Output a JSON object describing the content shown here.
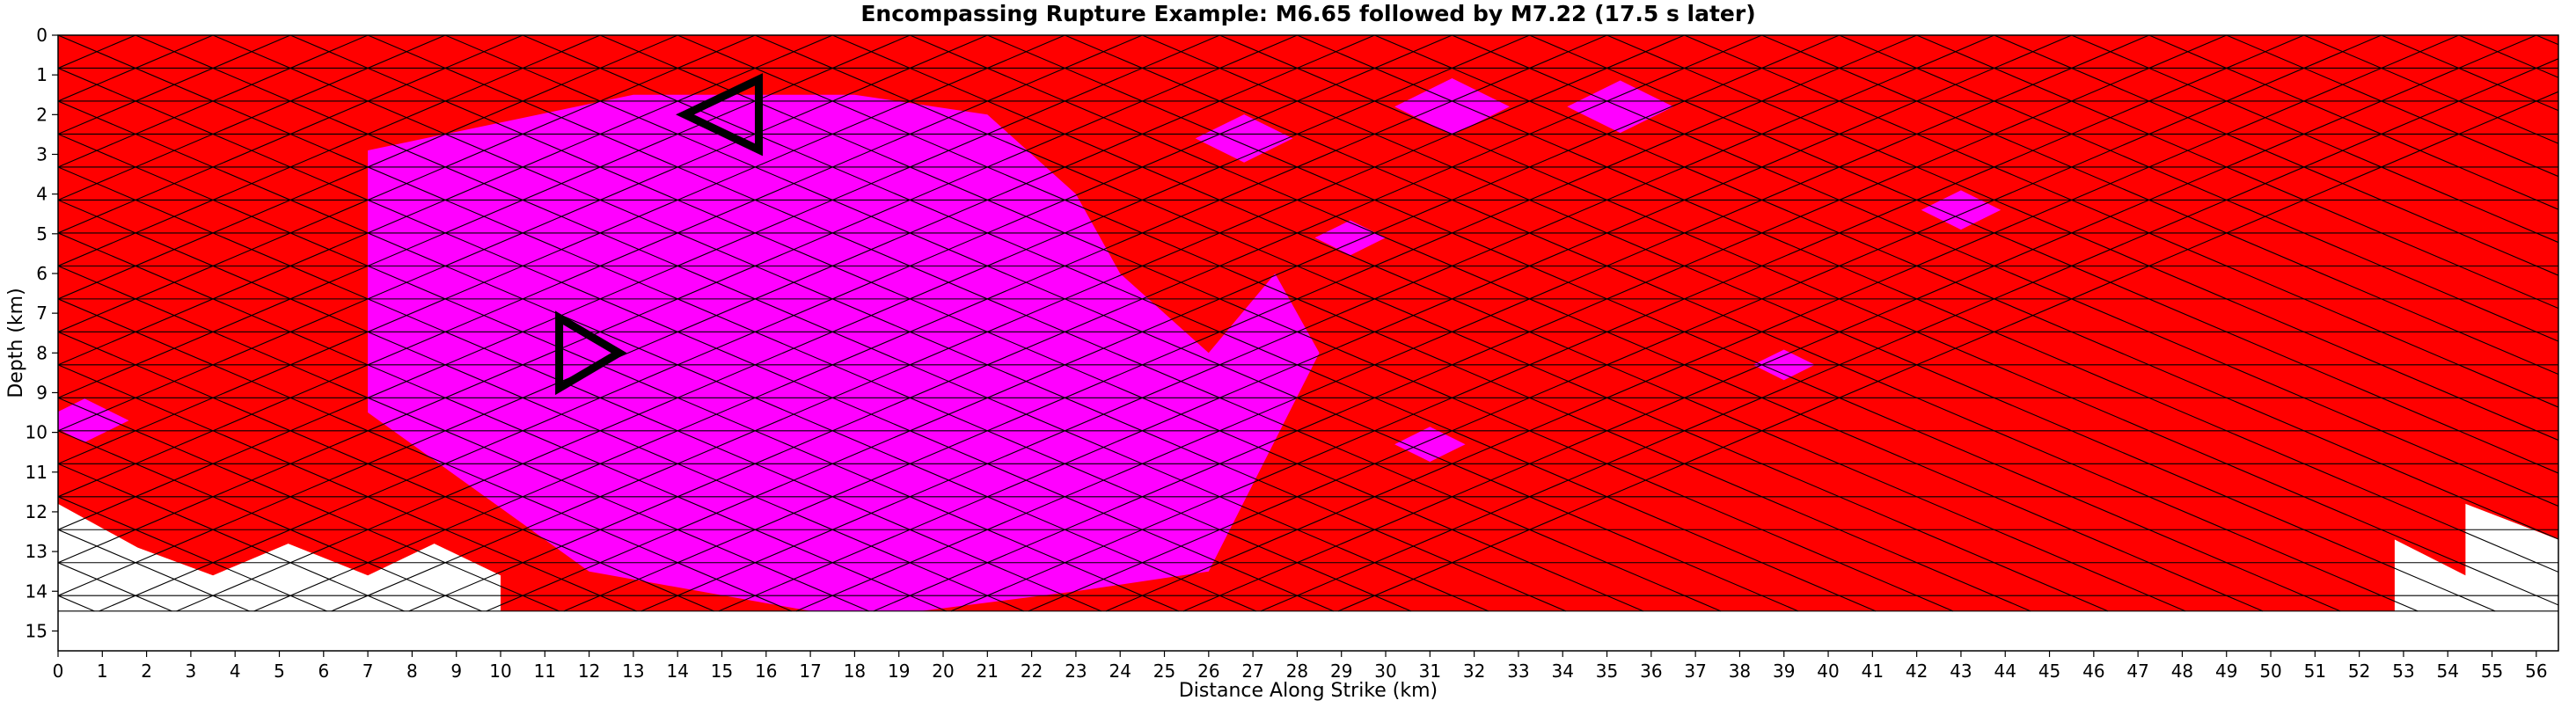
{
  "chart_data": {
    "type": "heatmap",
    "title": "Encompassing Rupture Example: M6.65 followed by M7.22 (17.5 s later)",
    "xlabel": "Distance Along Strike (km)",
    "ylabel": "Depth (km)",
    "xlim": [
      0,
      56.5
    ],
    "ylim": [
      15.5,
      0
    ],
    "xticks": [
      0,
      1,
      2,
      3,
      4,
      5,
      6,
      7,
      8,
      9,
      10,
      11,
      12,
      13,
      14,
      15,
      16,
      17,
      18,
      19,
      20,
      21,
      22,
      23,
      24,
      25,
      26,
      27,
      28,
      29,
      30,
      31,
      32,
      33,
      34,
      35,
      36,
      37,
      38,
      39,
      40,
      41,
      42,
      43,
      44,
      45,
      46,
      47,
      48,
      49,
      50,
      51,
      52,
      53,
      54,
      55,
      56
    ],
    "yticks": [
      0,
      1,
      2,
      3,
      4,
      5,
      6,
      7,
      8,
      9,
      10,
      11,
      12,
      13,
      14,
      15
    ],
    "grid": "triangular fault mesh",
    "colors": {
      "first_event": "#ff00ff",
      "second_event": "#ff0000",
      "unruptured": "#ffffff",
      "mesh_line": "#000000",
      "unruptured_line": "#999999",
      "marker": "#000000"
    },
    "legend": "none",
    "markers": [
      {
        "shape": "triangle-left",
        "x": 15,
        "y": 2
      },
      {
        "shape": "triangle-right",
        "x": 12,
        "y": 8
      }
    ],
    "regions": {
      "first_event_polygon": [
        [
          7,
          2.9
        ],
        [
          13,
          1.5
        ],
        [
          18,
          1.5
        ],
        [
          21,
          2
        ],
        [
          23,
          4
        ],
        [
          24,
          6
        ],
        [
          26,
          8
        ],
        [
          27.5,
          6
        ],
        [
          28.5,
          8
        ],
        [
          26,
          13.5
        ],
        [
          23,
          14
        ],
        [
          19.5,
          14.5
        ],
        [
          17,
          14.5
        ],
        [
          12,
          13.5
        ],
        [
          7,
          9.5
        ]
      ],
      "first_event_patches": [
        {
          "center": [
            26.8,
            2.6
          ],
          "radius": 1.1
        },
        {
          "center": [
            31.5,
            1.8
          ],
          "radius": 1.3
        },
        {
          "center": [
            35.3,
            1.8
          ],
          "radius": 1.2
        },
        {
          "center": [
            43,
            4.4
          ],
          "radius": 0.9
        },
        {
          "center": [
            29.2,
            5.1
          ],
          "radius": 0.8
        },
        {
          "center": [
            31,
            10.3
          ],
          "radius": 0.8
        },
        {
          "center": [
            39,
            8.3
          ],
          "radius": 0.7
        },
        {
          "center": [
            0.6,
            9.7
          ],
          "radius": 1.0
        }
      ],
      "unruptured_bottom_left": [
        [
          0,
          11.8
        ],
        [
          1.8,
          12.9
        ],
        [
          3.5,
          13.6
        ],
        [
          5.2,
          12.8
        ],
        [
          7,
          13.6
        ],
        [
          8.5,
          12.8
        ],
        [
          10,
          13.6
        ],
        [
          10,
          14.5
        ],
        [
          0,
          14.5
        ]
      ],
      "unruptured_bottom_right": [
        [
          52.8,
          12.7
        ],
        [
          54.4,
          13.6
        ],
        [
          54.4,
          11.8
        ],
        [
          56.5,
          12.7
        ],
        [
          56.5,
          14.5
        ],
        [
          52.8,
          14.5
        ]
      ]
    },
    "mesh": {
      "depth_max": 14.5,
      "strike_max": 56.5,
      "row_step": 0.83,
      "col_step": 1.75
    }
  }
}
